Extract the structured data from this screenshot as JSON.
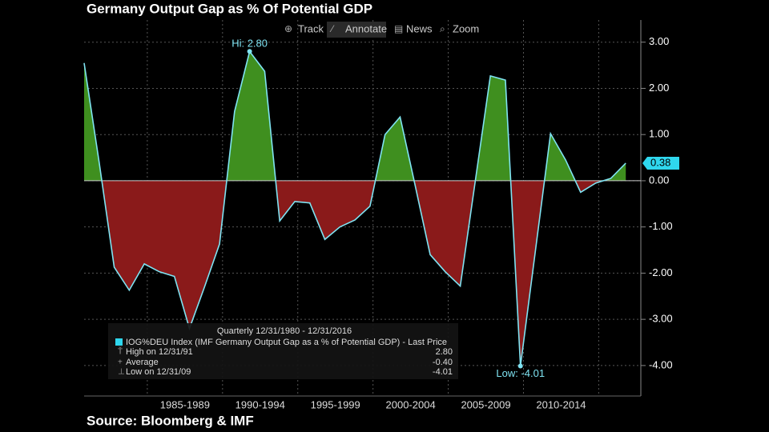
{
  "chart_data": {
    "type": "area-line",
    "title": "Germany Output Gap as % Of Potential GDP",
    "source": "Source: Bloomberg & IMF",
    "toolbar": [
      "Track",
      "Annotate",
      "News",
      "Zoom"
    ],
    "x": [
      1980,
      1981,
      1982,
      1983,
      1984,
      1985,
      1986,
      1987,
      1988,
      1989,
      1990,
      1991,
      1992,
      1993,
      1994,
      1995,
      1996,
      1997,
      1998,
      1999,
      2000,
      2001,
      2002,
      2003,
      2004,
      2005,
      2006,
      2007,
      2008,
      2009,
      2010,
      2011,
      2012,
      2013,
      2014,
      2015,
      2016
    ],
    "series": [
      {
        "name": "IOG%DEU Index (IMF Germany Output Gap as a % of Potential GDP) - Last Price",
        "color": "#7fe3f2",
        "values": [
          2.55,
          0.4,
          -1.87,
          -2.37,
          -1.8,
          -1.97,
          -2.07,
          -3.2,
          -2.3,
          -1.37,
          1.5,
          2.8,
          2.37,
          -0.87,
          -0.45,
          -0.48,
          -1.27,
          -1.0,
          -0.85,
          -0.55,
          1.0,
          1.38,
          -0.1,
          -1.6,
          -1.97,
          -2.28,
          0.0,
          2.27,
          2.18,
          -4.01,
          -1.5,
          1.02,
          0.45,
          -0.25,
          -0.05,
          0.05,
          0.38
        ]
      }
    ],
    "positive_color": "#3f8f1f",
    "negative_color": "#8a1a1a",
    "xlim": [
      1980,
      2017
    ],
    "xgrid": [
      1984.2,
      1989.2,
      1994.2,
      1999.2,
      2004.2,
      2009.2,
      2014.2
    ],
    "xticks": [
      {
        "value": 1986.7,
        "label": "1985-1989"
      },
      {
        "value": 1991.7,
        "label": "1990-1994"
      },
      {
        "value": 1996.7,
        "label": "1995-1999"
      },
      {
        "value": 2001.7,
        "label": "2000-2004"
      },
      {
        "value": 2006.7,
        "label": "2005-2009"
      },
      {
        "value": 2011.7,
        "label": "2010-2014"
      }
    ],
    "ylim": [
      -4.66,
      3.48
    ],
    "yticks": [
      {
        "value": 3,
        "label": "3.00"
      },
      {
        "value": 2,
        "label": "2.00"
      },
      {
        "value": 1,
        "label": "1.00"
      },
      {
        "value": 0,
        "label": "0.00"
      },
      {
        "value": -1,
        "label": "-1.00"
      },
      {
        "value": -2,
        "label": "-2.00"
      },
      {
        "value": -3,
        "label": "-3.00"
      },
      {
        "value": -4,
        "label": "-4.00"
      }
    ],
    "grid": true,
    "annotations": {
      "high": "Hi: 2.80",
      "low": "Low: -4.01",
      "last": "0.38"
    },
    "legend": {
      "period": "Quarterly 12/31/1980 - 12/31/2016",
      "entries": [
        {
          "name": "High on 12/31/91",
          "value": 2.8,
          "value_label": "2.80"
        },
        {
          "name": "Average",
          "value": -0.4,
          "value_label": "-0.40"
        },
        {
          "name": "Low on 12/31/09",
          "value": -4.01,
          "value_label": "-4.01"
        }
      ]
    }
  }
}
